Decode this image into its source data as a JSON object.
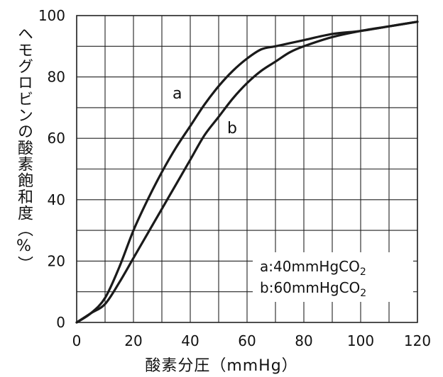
{
  "chart_data": {
    "type": "line",
    "title": "",
    "xlabel": "酸素分圧（mmHg）",
    "ylabel": "ヘモグロビンの酸素飽和度（%）",
    "xlim": [
      0,
      120
    ],
    "ylim": [
      0,
      100
    ],
    "xticks": [
      0,
      20,
      40,
      60,
      80,
      100,
      120
    ],
    "yticks": [
      0,
      20,
      40,
      60,
      80,
      100
    ],
    "grid": true,
    "legend_position": "bottom-right",
    "series": [
      {
        "name": "a",
        "x": [
          0,
          5,
          10,
          15,
          20,
          25,
          30,
          35,
          40,
          45,
          50,
          55,
          60,
          65,
          70,
          75,
          80,
          90,
          100,
          110,
          120
        ],
        "y": [
          0,
          3,
          8,
          18,
          30,
          40,
          49,
          57,
          64,
          71,
          77,
          82,
          86,
          89,
          90,
          91,
          92,
          94,
          95,
          96.5,
          98
        ]
      },
      {
        "name": "b",
        "x": [
          0,
          5,
          10,
          15,
          20,
          25,
          30,
          35,
          40,
          45,
          50,
          55,
          60,
          65,
          70,
          75,
          80,
          90,
          100,
          110,
          120
        ],
        "y": [
          0,
          3,
          6,
          13,
          21,
          29,
          37,
          45,
          53,
          61,
          67,
          73,
          78,
          82,
          85,
          88,
          90,
          93,
          95,
          96.5,
          98
        ]
      }
    ],
    "legend": [
      {
        "key": "a",
        "text": ":40mmHgCO",
        "sub": "2"
      },
      {
        "key": "b",
        "text": ":60mmHgCO",
        "sub": "2"
      }
    ],
    "style": {
      "line_color": "#1a1a1a",
      "grid_color": "#222222"
    }
  }
}
